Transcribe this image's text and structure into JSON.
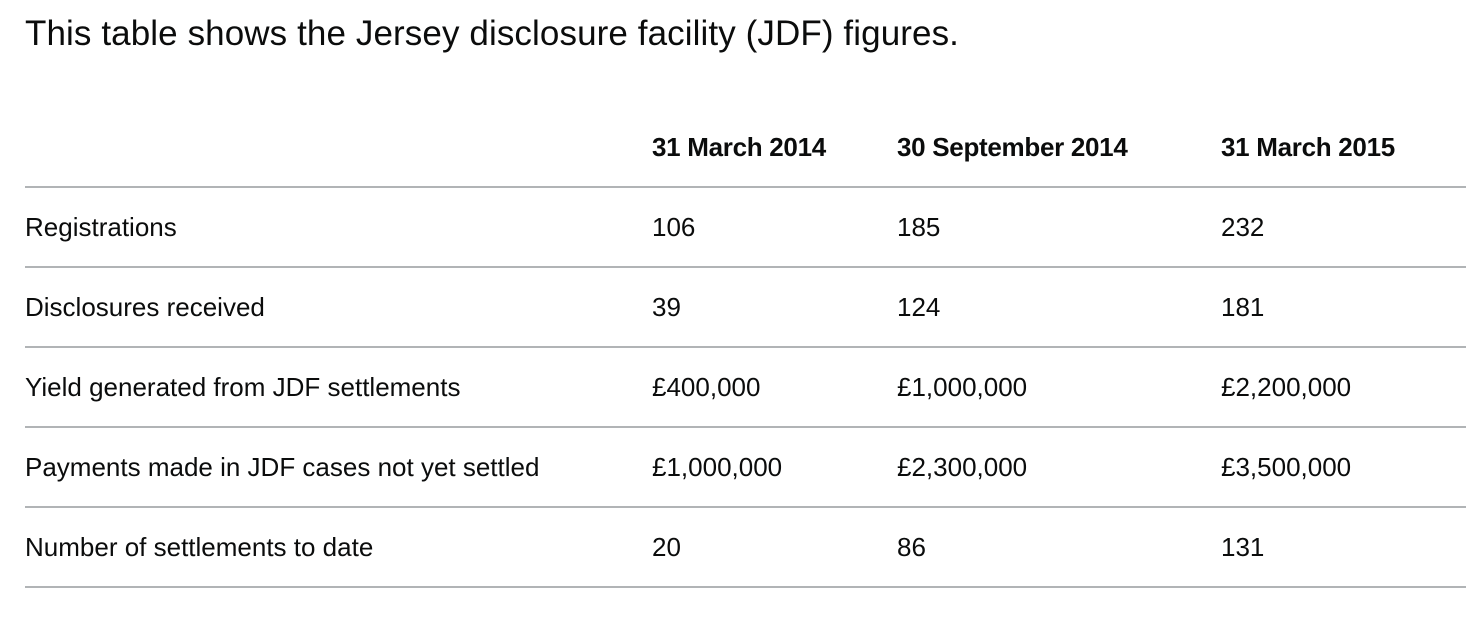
{
  "caption": "This table shows the Jersey disclosure facility (JDF) figures.",
  "table": {
    "headers": [
      "",
      "31 March 2014",
      "30 September 2014",
      "31 March 2015"
    ],
    "rows": [
      [
        "Registrations",
        "106",
        "185",
        "232"
      ],
      [
        "Disclosures received",
        "39",
        "124",
        "181"
      ],
      [
        "Yield generated from JDF settlements",
        "£400,000",
        "£1,000,000",
        "£2,200,000"
      ],
      [
        "Payments made in JDF cases not yet settled",
        "£1,000,000",
        "£2,300,000",
        "£3,500,000"
      ],
      [
        "Number of settlements to date",
        "20",
        "86",
        "131"
      ]
    ]
  }
}
